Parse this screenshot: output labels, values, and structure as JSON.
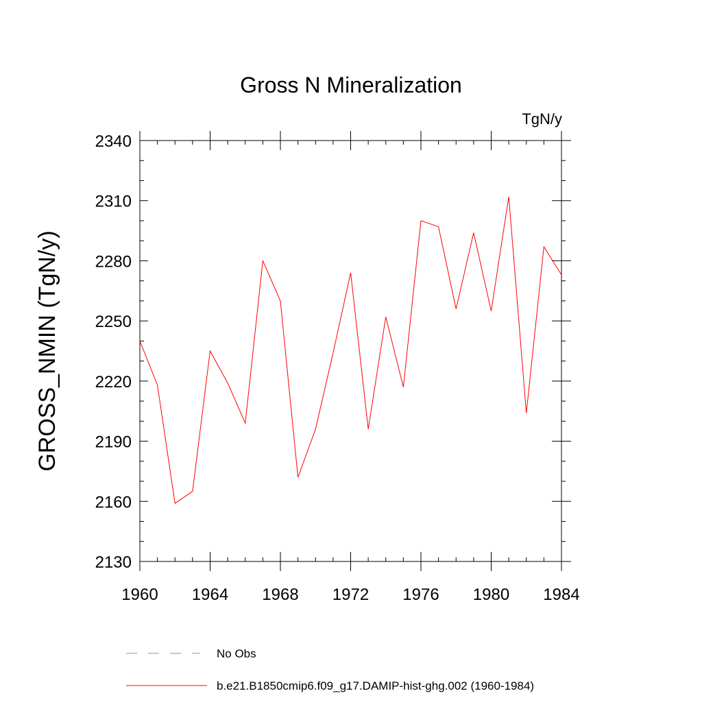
{
  "chart_data": {
    "type": "line",
    "title": "Gross N Mineralization",
    "units_label": "TgN/y",
    "ylabel": "GROSS_NMIN  (TgN/y)",
    "xlabel": "",
    "xlim": [
      1960,
      1984
    ],
    "ylim": [
      2130,
      2340
    ],
    "x_ticks": [
      1960,
      1964,
      1968,
      1972,
      1976,
      1980,
      1984
    ],
    "y_ticks": [
      2130,
      2160,
      2190,
      2220,
      2250,
      2280,
      2310,
      2340
    ],
    "grid": false,
    "legend_position": "bottom",
    "series": [
      {
        "name": "No Obs",
        "color": "#8c87c8",
        "style": "dashed",
        "x": [],
        "values": []
      },
      {
        "name": "b.e21.B1850cmip6.f09_g17.DAMIP-hist-ghg.002 (1960-1984)",
        "color": "#ff0000",
        "style": "solid",
        "x": [
          1960,
          1961,
          1962,
          1963,
          1964,
          1965,
          1966,
          1967,
          1968,
          1969,
          1970,
          1971,
          1972,
          1973,
          1974,
          1975,
          1976,
          1977,
          1978,
          1979,
          1980,
          1981,
          1982,
          1983,
          1984
        ],
        "values": [
          2240,
          2218,
          2159,
          2165,
          2235,
          2219,
          2199,
          2280,
          2260,
          2172,
          2196,
          2234,
          2274,
          2196,
          2252,
          2217,
          2300,
          2297,
          2256,
          2294,
          2255,
          2312,
          2204,
          2287,
          2273
        ]
      }
    ]
  }
}
